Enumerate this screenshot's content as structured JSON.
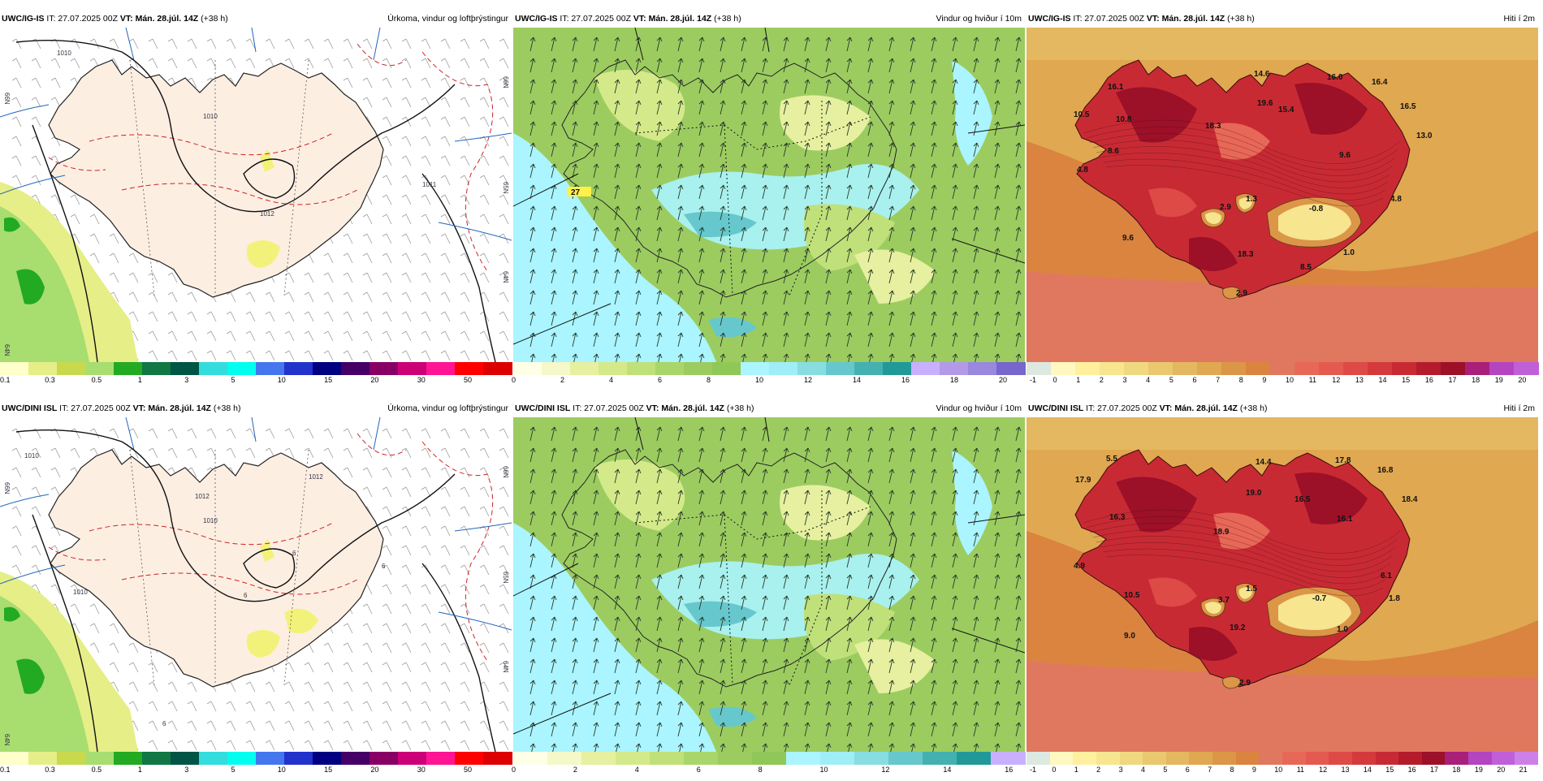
{
  "rows": [
    {
      "model": "UWC/IG-IS",
      "it": "IT: 27.07.2025 00Z",
      "vt": "VT: Mán. 28.júl. 14Z",
      "lead": "(+38 h)"
    },
    {
      "model": "UWC/DINI ISL",
      "it": "IT: 27.07.2025 00Z",
      "vt": "VT: Mán. 28.júl. 14Z",
      "lead": "(+38 h)"
    }
  ],
  "panels": {
    "precip": {
      "title": "Úrkoma, vindur og loftþrýstingur"
    },
    "wind": {
      "title": "Vindur og hviður í 10m"
    },
    "temp": {
      "title": "Hiti í 2m"
    }
  },
  "colorbars": {
    "precip": {
      "colors": [
        "#ffffcc",
        "#e6ee88",
        "#c9d94e",
        "#a8dd70",
        "#22aa22",
        "#117744",
        "#005544",
        "#33dddd",
        "#00ffee",
        "#4477ee",
        "#2233cc",
        "#000080",
        "#440066",
        "#880066",
        "#cc0077",
        "#ff1493",
        "#ff0000",
        "#dd0000"
      ],
      "ticks": [
        "0.1",
        "0.3",
        "0.5",
        "1",
        "3",
        "5",
        "10",
        "15",
        "20",
        "30",
        "50"
      ]
    },
    "wind_top": {
      "colors": [
        "#ffffe8",
        "#f5f8c8",
        "#e6f0a0",
        "#d4ea8a",
        "#c0e07a",
        "#a8d66a",
        "#9ccc60",
        "#90c858",
        "#aaf5ff",
        "#a0eef5",
        "#88dde0",
        "#66c8cc",
        "#44b0b0",
        "#229999",
        "#c8b0ff",
        "#b39ae8",
        "#9988dd",
        "#7766cc"
      ],
      "ticks": [
        "0",
        "2",
        "4",
        "6",
        "8",
        "10",
        "12",
        "14",
        "16",
        "18",
        "20"
      ]
    },
    "wind_bottom": {
      "colors": [
        "#ffffe8",
        "#f5f8c8",
        "#e6f0a0",
        "#d4ea8a",
        "#c0e07a",
        "#a8d66a",
        "#9ccc60",
        "#90c858",
        "#aaf5ff",
        "#a0eef5",
        "#88dde0",
        "#66c8cc",
        "#44b0b0",
        "#229999",
        "#c8b0ff"
      ],
      "ticks": [
        "0",
        "2",
        "4",
        "6",
        "8",
        "10",
        "12",
        "14",
        "16"
      ]
    },
    "temp_top": {
      "colors": [
        "#dde8e0",
        "#fff8c0",
        "#fff0a0",
        "#f7e590",
        "#f0d880",
        "#eac870",
        "#e4b860",
        "#e0a850",
        "#dc9648",
        "#da8440",
        "#e07860",
        "#e86858",
        "#e45a50",
        "#de4a46",
        "#d43a3c",
        "#c82a34",
        "#b41c2c",
        "#9c1028",
        "#a8207a",
        "#b444c0",
        "#c060d8"
      ],
      "ticks": [
        "-1",
        "0",
        "1",
        "2",
        "3",
        "4",
        "5",
        "6",
        "7",
        "8",
        "9",
        "10",
        "11",
        "12",
        "13",
        "14",
        "15",
        "16",
        "17",
        "18",
        "19",
        "20"
      ]
    },
    "temp_bottom": {
      "colors": [
        "#dde8e0",
        "#fff8c0",
        "#fff0a0",
        "#f7e590",
        "#f0d880",
        "#eac870",
        "#e4b860",
        "#e0a850",
        "#dc9648",
        "#da8440",
        "#e07860",
        "#e86858",
        "#e45a50",
        "#de4a46",
        "#d43a3c",
        "#c82a34",
        "#b41c2c",
        "#9c1028",
        "#a8207a",
        "#b444c0",
        "#c060d8",
        "#cc80e8"
      ],
      "ticks": [
        "-1",
        "0",
        "1",
        "2",
        "3",
        "4",
        "5",
        "6",
        "7",
        "8",
        "9",
        "10",
        "11",
        "12",
        "13",
        "14",
        "15",
        "16",
        "17",
        "18",
        "19",
        "20",
        "21"
      ]
    }
  },
  "labels": {
    "precip_top": {
      "isobars": [
        "1010",
        "1010",
        "1012",
        "1011"
      ],
      "lat": [
        "66N",
        "64N",
        "64N",
        "65N",
        "66N"
      ]
    },
    "precip_bottom": {
      "isobars": [
        "1010",
        "1012",
        "1012",
        "1010",
        "1010",
        "6",
        "6",
        "6",
        "6"
      ],
      "lat": [
        "66N",
        "64N",
        "64N",
        "65N",
        "66N"
      ]
    },
    "wind_top": {
      "gust": [
        "27"
      ]
    },
    "temp_top": [
      "16.1",
      "10.5",
      "10.8",
      "8.6",
      "4.8",
      "14.6",
      "16.0",
      "16.4",
      "19.6",
      "15.4",
      "18.3",
      "16.5",
      "13.0",
      "9.6",
      "2.9",
      "1.3",
      "-0.8",
      "4.8",
      "9.6",
      "18.3",
      "8.5",
      "1.0",
      "2.9"
    ],
    "temp_bottom": [
      "5.5",
      "17.9",
      "14.4",
      "17.8",
      "16.8",
      "16.3",
      "19.0",
      "16.5",
      "16.1",
      "18.4",
      "18.9",
      "4.9",
      "3.7",
      "1.5",
      "-0.7",
      "6.1",
      "1.8",
      "10.5",
      "9.0",
      "19.2",
      "1.0",
      "2.9"
    ]
  }
}
